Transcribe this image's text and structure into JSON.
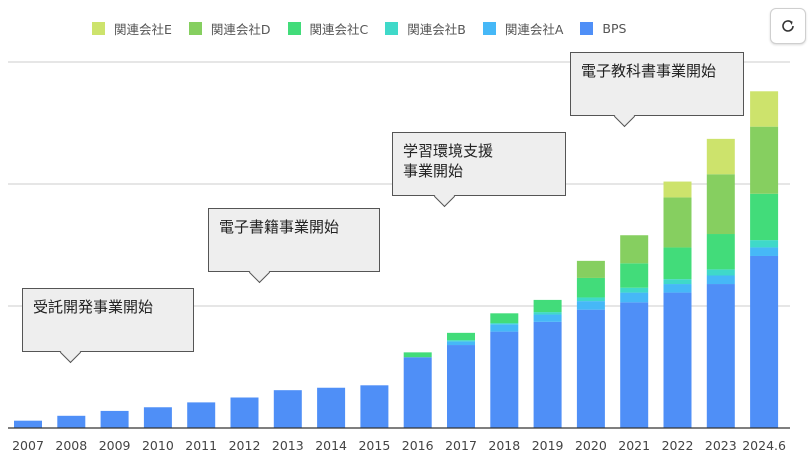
{
  "colors": {
    "BPS": "#4f8ff7",
    "関連会社A": "#46b8f7",
    "関連会社B": "#3fd9c9",
    "関連会社C": "#42dc7a",
    "関連会社D": "#86cf60",
    "関連会社E": "#cde36c"
  },
  "legend": [
    "関連会社E",
    "関連会社D",
    "関連会社C",
    "関連会社B",
    "関連会社A",
    "BPS"
  ],
  "reload_icon": "reload-icon",
  "annotations": [
    {
      "text": "受託開発事業開始",
      "category": "2008"
    },
    {
      "text": "電子書籍事業開始",
      "category": "2013"
    },
    {
      "text": "学習環境支援\n事業開始",
      "category": "2017"
    },
    {
      "text": "電子教科書事業開始",
      "category": "2022"
    }
  ],
  "chart_data": {
    "type": "bar",
    "stacked": true,
    "title": "",
    "xlabel": "",
    "ylabel": "",
    "grid": true,
    "ylim": [
      0,
      30
    ],
    "categories": [
      "2007",
      "2008",
      "2009",
      "2010",
      "2011",
      "2012",
      "2013",
      "2014",
      "2015",
      "2016",
      "2017",
      "2018",
      "2019",
      "2020",
      "2021",
      "2022",
      "2023",
      "2024.6"
    ],
    "series": [
      {
        "name": "BPS",
        "values": [
          0.6,
          1.0,
          1.4,
          1.7,
          2.1,
          2.5,
          3.1,
          3.3,
          3.5,
          5.8,
          6.8,
          7.9,
          8.7,
          9.7,
          10.3,
          11.1,
          11.8,
          14.1
        ]
      },
      {
        "name": "関連会社A",
        "values": [
          0,
          0,
          0,
          0,
          0,
          0,
          0,
          0,
          0,
          0,
          0.3,
          0.6,
          0.6,
          0.7,
          0.8,
          0.7,
          0.7,
          0.7
        ]
      },
      {
        "name": "関連会社B",
        "values": [
          0,
          0,
          0,
          0,
          0,
          0,
          0,
          0,
          0,
          0,
          0.1,
          0.1,
          0.2,
          0.3,
          0.4,
          0.4,
          0.5,
          0.6
        ]
      },
      {
        "name": "関連会社C",
        "values": [
          0,
          0,
          0,
          0,
          0,
          0,
          0,
          0,
          0,
          0.4,
          0.6,
          0.8,
          1.0,
          1.6,
          2.0,
          2.6,
          2.9,
          3.8
        ]
      },
      {
        "name": "関連会社D",
        "values": [
          0,
          0,
          0,
          0,
          0,
          0,
          0,
          0,
          0,
          0,
          0,
          0,
          0,
          1.4,
          2.3,
          4.1,
          4.9,
          5.5
        ]
      },
      {
        "name": "関連会社E",
        "values": [
          0,
          0,
          0,
          0,
          0,
          0,
          0,
          0,
          0,
          0,
          0,
          0,
          0,
          0,
          0,
          1.3,
          2.9,
          2.9
        ]
      }
    ]
  }
}
